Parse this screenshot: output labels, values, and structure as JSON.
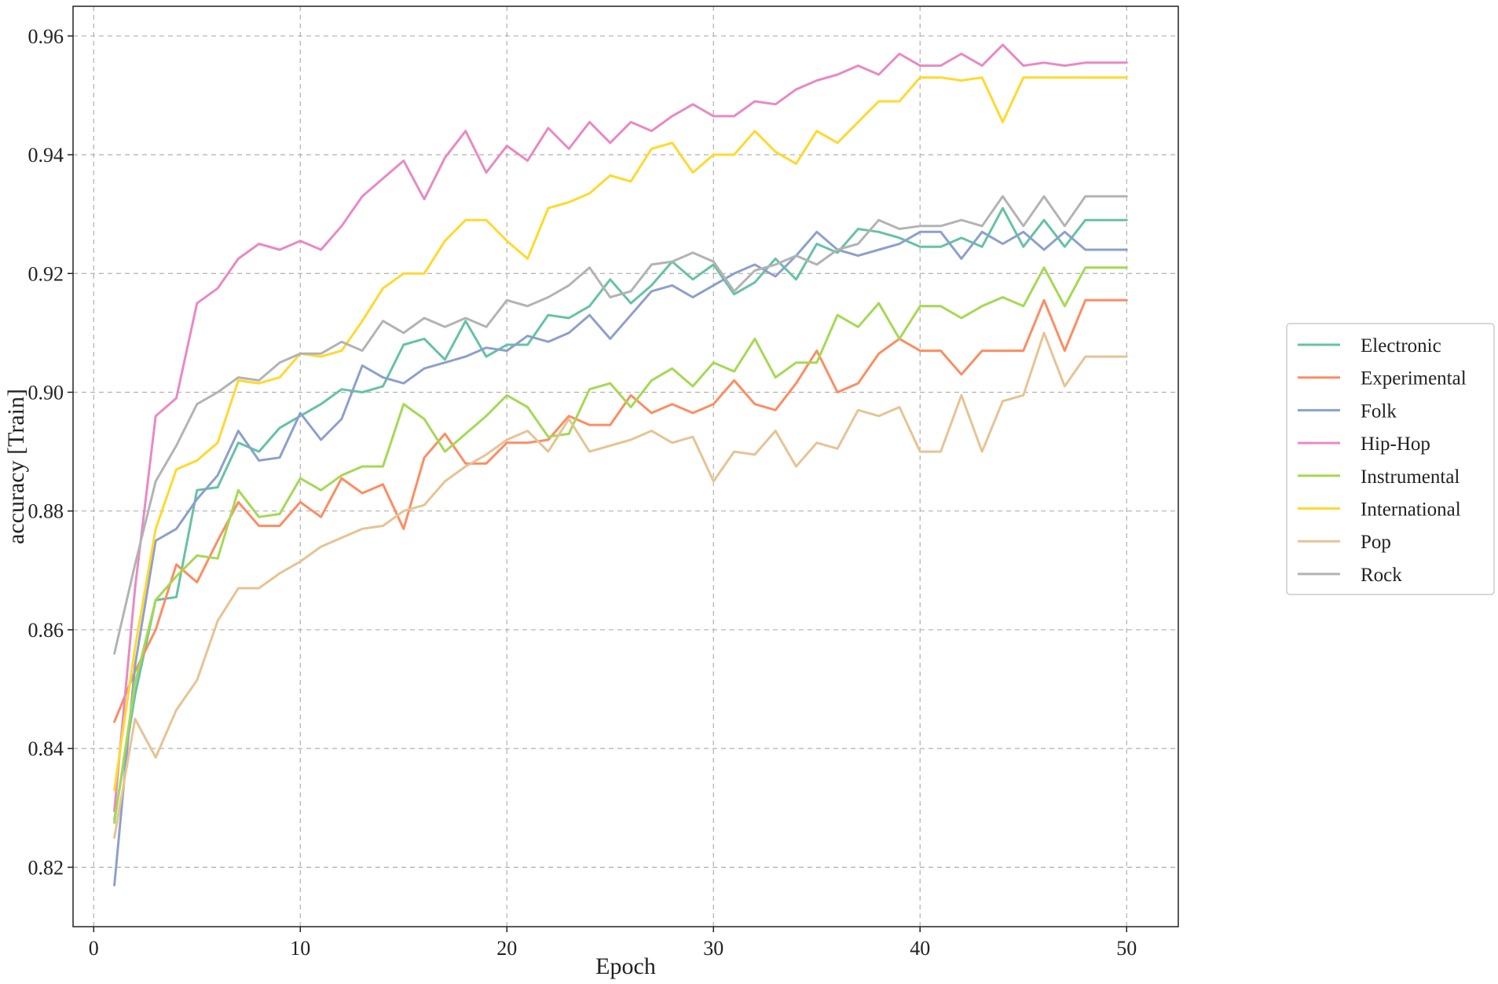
{
  "chart_data": {
    "type": "line",
    "title": "",
    "xlabel": "Epoch",
    "ylabel": "accuracy [Train]",
    "xlim": [
      -1,
      52.5
    ],
    "ylim": [
      0.81,
      0.965
    ],
    "xticks": [
      0,
      10,
      20,
      30,
      40,
      50
    ],
    "xtick_labels": [
      "0",
      "10",
      "20",
      "30",
      "40",
      "50"
    ],
    "yticks": [
      0.82,
      0.84,
      0.86,
      0.88,
      0.9,
      0.92,
      0.94,
      0.96
    ],
    "ytick_labels": [
      "0.82",
      "0.84",
      "0.86",
      "0.88",
      "0.90",
      "0.92",
      "0.94",
      "0.96"
    ],
    "grid": true,
    "legend_position": "right",
    "x": [
      1,
      2,
      3,
      4,
      5,
      6,
      7,
      8,
      9,
      10,
      11,
      12,
      13,
      14,
      15,
      16,
      17,
      18,
      19,
      20,
      21,
      22,
      23,
      24,
      25,
      26,
      27,
      28,
      29,
      30,
      31,
      32,
      33,
      34,
      35,
      36,
      37,
      38,
      39,
      40,
      41,
      42,
      43,
      44,
      45,
      46,
      47,
      48,
      49,
      50
    ],
    "series": [
      {
        "name": "Electronic",
        "color": "#66c2a5",
        "values": [
          0.828,
          0.849,
          0.865,
          0.8655,
          0.8835,
          0.884,
          0.8915,
          0.89,
          0.894,
          0.896,
          0.898,
          0.9005,
          0.9,
          0.901,
          0.908,
          0.909,
          0.9055,
          0.912,
          0.906,
          0.908,
          0.908,
          0.913,
          0.9125,
          0.9145,
          0.919,
          0.915,
          0.918,
          0.922,
          0.919,
          0.9215,
          0.9165,
          0.9185,
          0.9225,
          0.919,
          0.925,
          0.9235,
          0.9275,
          0.927,
          0.926,
          0.9245,
          0.9245,
          0.926,
          0.9245,
          0.931,
          0.9245,
          0.929,
          0.9245,
          0.929,
          0.929,
          0.929
        ]
      },
      {
        "name": "Experimental",
        "color": "#fc8d62",
        "values": [
          0.8445,
          0.853,
          0.86,
          0.871,
          0.868,
          0.875,
          0.8815,
          0.8775,
          0.8775,
          0.8815,
          0.879,
          0.8855,
          0.883,
          0.8845,
          0.877,
          0.889,
          0.893,
          0.888,
          0.888,
          0.8915,
          0.8915,
          0.892,
          0.896,
          0.8945,
          0.8945,
          0.8995,
          0.8965,
          0.898,
          0.8965,
          0.898,
          0.902,
          0.898,
          0.897,
          0.9015,
          0.907,
          0.9,
          0.9015,
          0.9065,
          0.909,
          0.907,
          0.907,
          0.903,
          0.907,
          0.907,
          0.907,
          0.9155,
          0.907,
          0.9155,
          0.9155,
          0.9155
        ]
      },
      {
        "name": "Folk",
        "color": "#8da0cb",
        "values": [
          0.817,
          0.854,
          0.875,
          0.877,
          0.882,
          0.886,
          0.8935,
          0.8885,
          0.889,
          0.8965,
          0.892,
          0.8955,
          0.9045,
          0.9025,
          0.9015,
          0.904,
          0.905,
          0.906,
          0.9075,
          0.907,
          0.9095,
          0.9085,
          0.91,
          0.913,
          0.909,
          0.913,
          0.917,
          0.918,
          0.916,
          0.918,
          0.92,
          0.9215,
          0.9195,
          0.923,
          0.927,
          0.924,
          0.923,
          0.924,
          0.925,
          0.927,
          0.927,
          0.9225,
          0.927,
          0.925,
          0.927,
          0.924,
          0.927,
          0.924,
          0.924,
          0.924
        ]
      },
      {
        "name": "Hip-Hop",
        "color": "#e78ac3",
        "values": [
          0.8295,
          0.867,
          0.896,
          0.899,
          0.915,
          0.9175,
          0.9225,
          0.925,
          0.924,
          0.9255,
          0.924,
          0.928,
          0.933,
          0.936,
          0.939,
          0.9325,
          0.9395,
          0.944,
          0.937,
          0.9415,
          0.939,
          0.9445,
          0.941,
          0.9455,
          0.942,
          0.9455,
          0.944,
          0.9465,
          0.9485,
          0.9465,
          0.9465,
          0.949,
          0.9485,
          0.951,
          0.9525,
          0.9535,
          0.955,
          0.9535,
          0.957,
          0.955,
          0.955,
          0.957,
          0.955,
          0.9585,
          0.955,
          0.9555,
          0.955,
          0.9555,
          0.9555,
          0.9555
        ]
      },
      {
        "name": "Instrumental",
        "color": "#a6d854",
        "values": [
          0.8275,
          0.851,
          0.865,
          0.869,
          0.8725,
          0.872,
          0.8835,
          0.879,
          0.8795,
          0.8855,
          0.8835,
          0.886,
          0.8875,
          0.8875,
          0.898,
          0.8955,
          0.89,
          0.893,
          0.896,
          0.8995,
          0.8975,
          0.8925,
          0.893,
          0.9005,
          0.9015,
          0.8975,
          0.902,
          0.904,
          0.901,
          0.905,
          0.9035,
          0.909,
          0.9025,
          0.905,
          0.905,
          0.913,
          0.911,
          0.915,
          0.909,
          0.9145,
          0.9145,
          0.9125,
          0.9145,
          0.916,
          0.9145,
          0.921,
          0.9145,
          0.921,
          0.921,
          0.921
        ]
      },
      {
        "name": "International",
        "color": "#ffd92f",
        "values": [
          0.833,
          0.857,
          0.877,
          0.887,
          0.8885,
          0.8915,
          0.902,
          0.9015,
          0.9025,
          0.9065,
          0.906,
          0.907,
          0.912,
          0.9175,
          0.92,
          0.92,
          0.9255,
          0.929,
          0.929,
          0.9255,
          0.9225,
          0.931,
          0.932,
          0.9335,
          0.9365,
          0.9355,
          0.941,
          0.942,
          0.937,
          0.94,
          0.94,
          0.944,
          0.9405,
          0.9385,
          0.944,
          0.942,
          0.9455,
          0.949,
          0.949,
          0.953,
          0.953,
          0.9525,
          0.953,
          0.9455,
          0.953,
          0.953,
          0.953,
          0.953,
          0.953,
          0.953
        ]
      },
      {
        "name": "Pop",
        "color": "#e5c494",
        "values": [
          0.825,
          0.845,
          0.8385,
          0.8465,
          0.8515,
          0.8615,
          0.867,
          0.867,
          0.8695,
          0.8715,
          0.874,
          0.8755,
          0.877,
          0.8775,
          0.88,
          0.881,
          0.885,
          0.8875,
          0.8895,
          0.892,
          0.8935,
          0.89,
          0.8955,
          0.89,
          0.891,
          0.892,
          0.8935,
          0.8915,
          0.8925,
          0.885,
          0.89,
          0.8895,
          0.8935,
          0.8875,
          0.8915,
          0.8905,
          0.897,
          0.896,
          0.8975,
          0.89,
          0.89,
          0.8995,
          0.89,
          0.8985,
          0.8995,
          0.91,
          0.901,
          0.906,
          0.906,
          0.906
        ]
      },
      {
        "name": "Rock",
        "color": "#b3b3b3",
        "values": [
          0.856,
          0.871,
          0.885,
          0.891,
          0.898,
          0.9,
          0.9025,
          0.902,
          0.905,
          0.9065,
          0.9065,
          0.9085,
          0.907,
          0.912,
          0.91,
          0.9125,
          0.911,
          0.9125,
          0.911,
          0.9155,
          0.9145,
          0.916,
          0.918,
          0.921,
          0.916,
          0.917,
          0.9215,
          0.922,
          0.9235,
          0.922,
          0.917,
          0.9205,
          0.9215,
          0.923,
          0.9215,
          0.924,
          0.925,
          0.929,
          0.9275,
          0.928,
          0.928,
          0.929,
          0.928,
          0.933,
          0.928,
          0.933,
          0.928,
          0.933,
          0.933,
          0.933
        ]
      }
    ]
  }
}
